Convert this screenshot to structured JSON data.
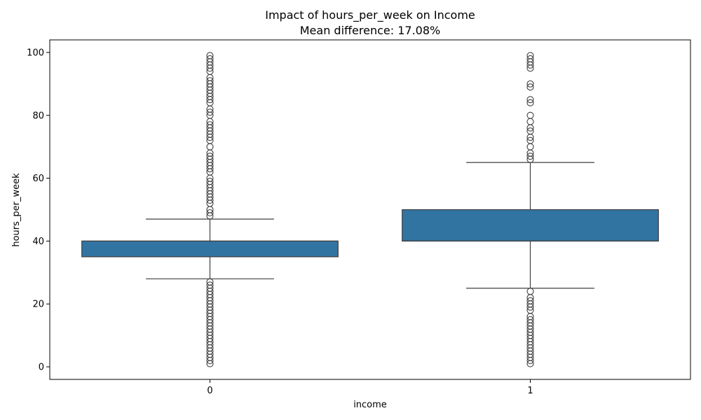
{
  "chart_data": {
    "type": "box",
    "title": "Impact of hours_per_week on Income",
    "subtitle": "Mean difference: 17.08%",
    "xlabel": "income",
    "ylabel": "hours_per_week",
    "ylim": [
      -4,
      104
    ],
    "yticks": [
      0,
      20,
      40,
      60,
      80,
      100
    ],
    "categories": [
      "0",
      "1"
    ],
    "box_color": "#3274a1",
    "line_color": "#3f3f3f",
    "grid": false,
    "boxes": [
      {
        "category": "0",
        "whisker_low": 28,
        "q1": 35,
        "median": 40,
        "q3": 40,
        "whisker_high": 47,
        "outliers": [
          1,
          2,
          3,
          4,
          5,
          6,
          7,
          8,
          9,
          10,
          11,
          12,
          13,
          14,
          15,
          16,
          17,
          18,
          19,
          20,
          21,
          22,
          23,
          24,
          25,
          26,
          27,
          48,
          49,
          50,
          52,
          53,
          54,
          55,
          56,
          57,
          58,
          59,
          60,
          62,
          63,
          64,
          65,
          66,
          67,
          68,
          70,
          72,
          73,
          74,
          75,
          76,
          77,
          78,
          80,
          81,
          82,
          84,
          85,
          86,
          87,
          88,
          89,
          90,
          91,
          92,
          94,
          95,
          96,
          97,
          98,
          99
        ]
      },
      {
        "category": "1",
        "whisker_low": 25,
        "q1": 40,
        "median": 40,
        "q3": 50,
        "whisker_high": 65,
        "outliers": [
          1,
          2,
          3,
          4,
          5,
          6,
          7,
          8,
          9,
          10,
          11,
          12,
          13,
          14,
          15,
          16,
          18,
          19,
          20,
          21,
          22,
          24,
          66,
          67,
          68,
          70,
          72,
          73,
          75,
          76,
          78,
          80,
          84,
          85,
          89,
          90,
          95,
          96,
          97,
          98,
          99
        ]
      }
    ]
  }
}
